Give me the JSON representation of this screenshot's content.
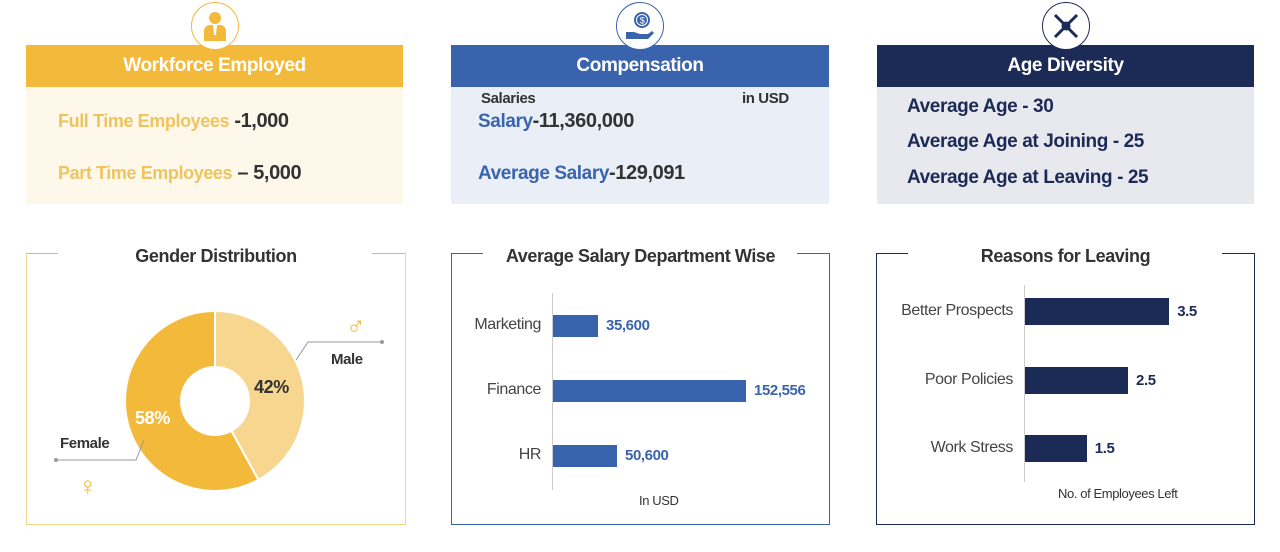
{
  "colors": {
    "gold": "#F2B93B",
    "gold_light": "#F7D68F",
    "blue": "#3A63AD",
    "navy": "#1C2A56"
  },
  "workforce": {
    "title": "Workforce Employed",
    "icon": "employee-icon",
    "full_time_label": "Full Time Employees",
    "full_time_value": "-1,000",
    "part_time_label": "Part Time Employees",
    "part_time_value": "– 5,000"
  },
  "compensation": {
    "title": "Compensation",
    "icon": "hand-dollar-icon",
    "salaries_label": "Salaries",
    "unit": "in USD",
    "salary_label": "Salary",
    "salary_value": "-11,360,000",
    "avg_label": "Average Salary",
    "avg_value": "-129,091"
  },
  "age": {
    "title": "Age Diversity",
    "icon": "network-icon",
    "avg_age": "Average Age - 30",
    "avg_joining": "Average Age at Joining - 25",
    "avg_leaving": "Average Age at Leaving - 25"
  },
  "chart_data": [
    {
      "type": "pie",
      "title": "Gender Distribution",
      "categories": [
        "Male",
        "Female"
      ],
      "values": [
        42,
        58
      ],
      "labels": [
        "42%",
        "58%"
      ],
      "donut": true,
      "colors": [
        "#F7D68F",
        "#F2B93B"
      ]
    },
    {
      "type": "bar",
      "orientation": "horizontal",
      "title": "Average Salary Department Wise",
      "categories": [
        "Marketing",
        "Finance",
        "HR"
      ],
      "values": [
        35600,
        152556,
        50600
      ],
      "labels": [
        "35,600",
        "152,556",
        "50,600"
      ],
      "xlabel": "In USD",
      "color": "#3A63AD"
    },
    {
      "type": "bar",
      "orientation": "horizontal",
      "title": "Reasons for Leaving",
      "categories": [
        "Better Prospects",
        "Poor Policies",
        "Work Stress"
      ],
      "values": [
        3.5,
        2.5,
        1.5
      ],
      "labels": [
        "3.5",
        "2.5",
        "1.5"
      ],
      "xlabel": "No. of Employees Left",
      "color": "#1C2A56"
    }
  ]
}
